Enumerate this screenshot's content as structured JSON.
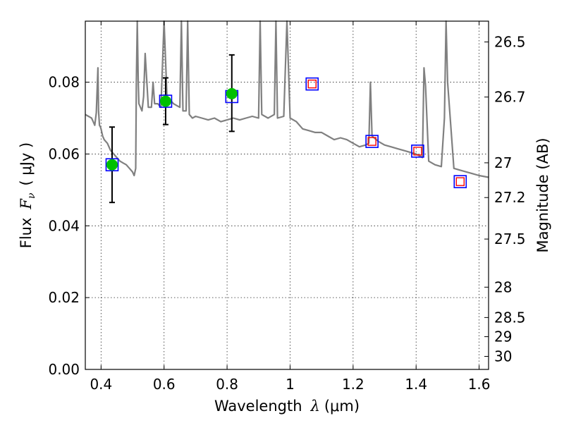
{
  "chart_data": {
    "type": "scatter",
    "title": "",
    "xlabel_prefix": "Wavelength",
    "xlabel_symbol": "λ",
    "xlabel_unit": "(μm)",
    "ylabel_prefix": "Flux",
    "ylabel_symbol": "F",
    "ylabel_subscript": "ν",
    "ylabel_unit": "( μJy )",
    "y2label": "Magnitude (AB)",
    "xlim": [
      0.35,
      1.63
    ],
    "ylim": [
      0.0,
      0.097
    ],
    "grid": true,
    "x_ticks": [
      0.4,
      0.6,
      0.8,
      1.0,
      1.2,
      1.4,
      1.6
    ],
    "x_tick_labels": [
      "0.4",
      "0.6",
      "0.8",
      "1",
      "1.2",
      "1.4",
      "1.6"
    ],
    "y_ticks": [
      0.0,
      0.02,
      0.04,
      0.06,
      0.08
    ],
    "y_tick_labels": [
      "0.00",
      "0.02",
      "0.04",
      "0.06",
      "0.08"
    ],
    "y2_ticks": [
      {
        "label": "26.5",
        "mag": 26.5
      },
      {
        "label": "26.7",
        "mag": 26.7
      },
      {
        "label": "27",
        "mag": 27.0
      },
      {
        "label": "27.2",
        "mag": 27.2
      },
      {
        "label": "27.5",
        "mag": 27.5
      },
      {
        "label": "28",
        "mag": 28.0
      },
      {
        "label": "28.5",
        "mag": 28.5
      },
      {
        "label": "29",
        "mag": 29.0
      },
      {
        "label": "30",
        "mag": 30.0
      }
    ],
    "series": [
      {
        "type": "line",
        "color": "#808080",
        "x": [
          0.35,
          0.36,
          0.37,
          0.375,
          0.38,
          0.385,
          0.39,
          0.392,
          0.395,
          0.398,
          0.4,
          0.405,
          0.41,
          0.42,
          0.43,
          0.44,
          0.45,
          0.46,
          0.47,
          0.48,
          0.49,
          0.5,
          0.505,
          0.51,
          0.512,
          0.515,
          0.518,
          0.52,
          0.53,
          0.535,
          0.54,
          0.55,
          0.56,
          0.565,
          0.57,
          0.58,
          0.59,
          0.6,
          0.61,
          0.62,
          0.63,
          0.64,
          0.65,
          0.655,
          0.66,
          0.67,
          0.675,
          0.68,
          0.69,
          0.7,
          0.72,
          0.74,
          0.76,
          0.78,
          0.8,
          0.82,
          0.84,
          0.86,
          0.88,
          0.9,
          0.905,
          0.91,
          0.93,
          0.95,
          0.955,
          0.96,
          0.98,
          0.99,
          1.0,
          1.02,
          1.04,
          1.06,
          1.08,
          1.1,
          1.12,
          1.14,
          1.16,
          1.18,
          1.2,
          1.22,
          1.24,
          1.25,
          1.255,
          1.26,
          1.28,
          1.3,
          1.32,
          1.34,
          1.36,
          1.38,
          1.4,
          1.42,
          1.425,
          1.43,
          1.44,
          1.46,
          1.48,
          1.49,
          1.495,
          1.5,
          1.52,
          1.54,
          1.56,
          1.58,
          1.6,
          1.63
        ],
        "y": [
          0.071,
          0.0705,
          0.07,
          0.069,
          0.068,
          0.0715,
          0.084,
          0.072,
          0.068,
          0.0675,
          0.067,
          0.065,
          0.064,
          0.063,
          0.061,
          0.06,
          0.059,
          0.058,
          0.0575,
          0.057,
          0.056,
          0.055,
          0.054,
          0.056,
          0.08,
          0.097,
          0.08,
          0.074,
          0.072,
          0.076,
          0.088,
          0.073,
          0.073,
          0.08,
          0.074,
          0.074,
          0.073,
          0.097,
          0.074,
          0.075,
          0.074,
          0.0735,
          0.073,
          0.097,
          0.072,
          0.072,
          0.097,
          0.071,
          0.07,
          0.0705,
          0.07,
          0.0695,
          0.07,
          0.069,
          0.0695,
          0.07,
          0.0695,
          0.07,
          0.0705,
          0.07,
          0.097,
          0.071,
          0.07,
          0.071,
          0.097,
          0.07,
          0.0705,
          0.097,
          0.07,
          0.069,
          0.067,
          0.0665,
          0.066,
          0.066,
          0.065,
          0.064,
          0.0645,
          0.064,
          0.063,
          0.062,
          0.0625,
          0.063,
          0.08,
          0.065,
          0.0635,
          0.0625,
          0.062,
          0.0615,
          0.061,
          0.0605,
          0.06,
          0.059,
          0.084,
          0.079,
          0.058,
          0.057,
          0.0565,
          0.07,
          0.097,
          0.08,
          0.056,
          0.0555,
          0.055,
          0.0545,
          0.054,
          0.0535
        ]
      },
      {
        "type": "scatter",
        "marker": "circle",
        "color": "#00c000",
        "x": [
          0.435,
          0.605,
          0.815
        ],
        "y": [
          0.057,
          0.0747,
          0.0768
        ],
        "yerr_low": [
          0.0105,
          0.0065,
          0.0105
        ],
        "yerr_high": [
          0.0105,
          0.0065,
          0.0108
        ]
      },
      {
        "type": "scatter",
        "marker": "square-open",
        "color": "#0000ff",
        "x": [
          0.435,
          0.605,
          0.815,
          1.07,
          1.26,
          1.405,
          1.54
        ],
        "y": [
          0.057,
          0.0747,
          0.076,
          0.0795,
          0.0635,
          0.0608,
          0.0523
        ]
      },
      {
        "type": "scatter",
        "marker": "square-open-small",
        "color": "#ff0000",
        "x": [
          1.07,
          1.26,
          1.405,
          1.54
        ],
        "y": [
          0.0795,
          0.0635,
          0.0608,
          0.0523
        ]
      }
    ]
  }
}
